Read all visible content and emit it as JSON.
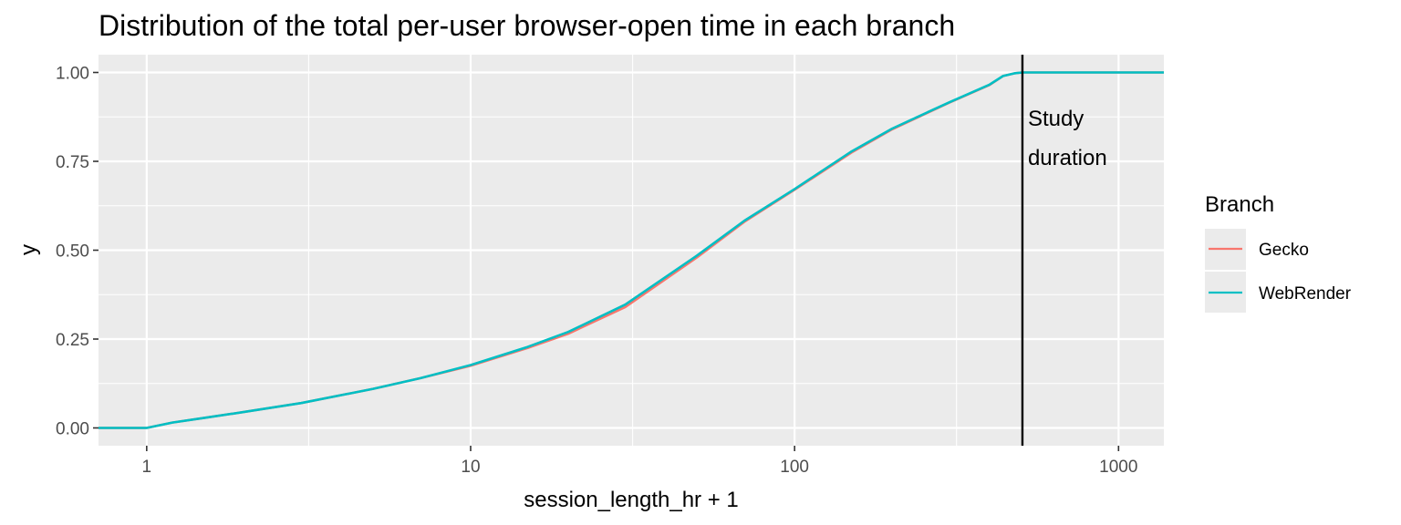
{
  "chart_data": {
    "type": "line",
    "title": "Distribution of the total per-user browser-open time in each branch",
    "xlabel": "session_length_hr + 1",
    "ylabel": "y",
    "x_scale": "log10",
    "xlim": [
      0.71,
      1380
    ],
    "ylim": [
      -0.05,
      1.05
    ],
    "x_ticks": [
      1,
      10,
      100,
      1000
    ],
    "x_tick_labels": [
      "1",
      "10",
      "100",
      "1000"
    ],
    "y_ticks": [
      0,
      0.25,
      0.5,
      0.75,
      1.0
    ],
    "y_tick_labels": [
      "0.00",
      "0.25",
      "0.50",
      "0.75",
      "1.00"
    ],
    "grid": true,
    "legend": {
      "title": "Branch",
      "placement": "right"
    },
    "annotation": {
      "lines": [
        "Study",
        "duration"
      ],
      "x": 505
    },
    "vline_x": 505,
    "series": [
      {
        "name": "Gecko",
        "color": "#F8766D",
        "x": [
          0.71,
          1,
          1.2,
          1.5,
          2,
          3,
          5,
          7,
          10,
          15,
          20,
          30,
          50,
          70,
          100,
          150,
          200,
          300,
          400,
          440,
          480,
          505,
          1380
        ],
        "y": [
          0,
          0,
          0.015,
          0.028,
          0.045,
          0.07,
          0.11,
          0.14,
          0.175,
          0.225,
          0.265,
          0.34,
          0.48,
          0.58,
          0.67,
          0.775,
          0.84,
          0.915,
          0.965,
          0.99,
          0.998,
          1.0,
          1.0
        ]
      },
      {
        "name": "WebRender",
        "color": "#00BFC4",
        "x": [
          0.71,
          1,
          1.2,
          1.5,
          2,
          3,
          5,
          7,
          10,
          15,
          20,
          30,
          50,
          70,
          100,
          150,
          200,
          300,
          400,
          440,
          480,
          505,
          1380
        ],
        "y": [
          0,
          0,
          0.015,
          0.028,
          0.045,
          0.07,
          0.11,
          0.14,
          0.177,
          0.228,
          0.27,
          0.347,
          0.485,
          0.583,
          0.672,
          0.778,
          0.842,
          0.916,
          0.966,
          0.99,
          0.998,
          1.0,
          1.0
        ]
      }
    ]
  }
}
